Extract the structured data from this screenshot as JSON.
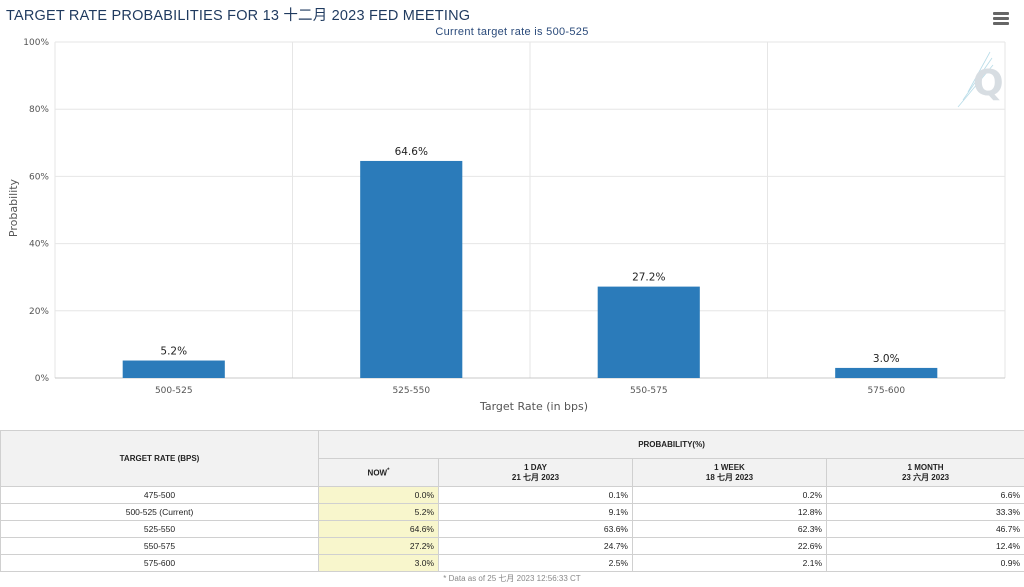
{
  "title": "TARGET RATE PROBABILITIES FOR 13 十二月 2023 FED MEETING",
  "subtitle": "Current target rate is 500-525",
  "chart_data": {
    "type": "bar",
    "categories": [
      "500-525",
      "525-550",
      "550-575",
      "575-600"
    ],
    "values": [
      5.2,
      64.6,
      27.2,
      3.0
    ],
    "data_labels": [
      "5.2%",
      "64.6%",
      "27.2%",
      "3.0%"
    ],
    "xlabel": "Target Rate (in bps)",
    "ylabel": "Probability",
    "ylim": [
      0,
      100
    ],
    "yticks": [
      0,
      20,
      40,
      60,
      80,
      100
    ],
    "ytick_labels": [
      "0%",
      "20%",
      "40%",
      "60%",
      "80%",
      "100%"
    ],
    "grid": true,
    "bar_color": "#2b7bba"
  },
  "table": {
    "col_rate": "TARGET RATE (BPS)",
    "col_prob": "PROBABILITY(%)",
    "col_now": "NOW",
    "now_marker": "*",
    "col_1day": "1 DAY",
    "col_1day_date": "21 七月 2023",
    "col_1week": "1 WEEK",
    "col_1week_date": "18 七月 2023",
    "col_1month": "1 MONTH",
    "col_1month_date": "23 六月 2023",
    "rows": [
      {
        "rate": "475-500",
        "now": "0.0%",
        "day": "0.1%",
        "week": "0.2%",
        "month": "6.6%"
      },
      {
        "rate": "500-525 (Current)",
        "now": "5.2%",
        "day": "9.1%",
        "week": "12.8%",
        "month": "33.3%"
      },
      {
        "rate": "525-550",
        "now": "64.6%",
        "day": "63.6%",
        "week": "62.3%",
        "month": "46.7%"
      },
      {
        "rate": "550-575",
        "now": "27.2%",
        "day": "24.7%",
        "week": "22.6%",
        "month": "12.4%"
      },
      {
        "rate": "575-600",
        "now": "3.0%",
        "day": "2.5%",
        "week": "2.1%",
        "month": "0.9%"
      }
    ],
    "footnote": "* Data as of 25 七月 2023 12:56:33 CT"
  },
  "colors": {
    "now_highlight": "#f8f6cc",
    "title": "#1f3a5f"
  }
}
